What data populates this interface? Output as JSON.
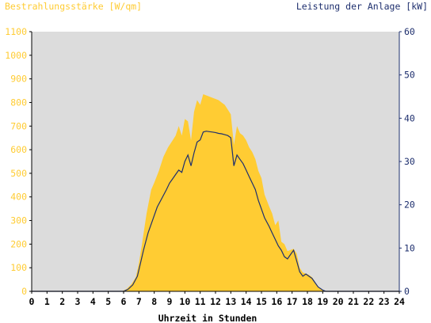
{
  "chart_data": {
    "type": "area",
    "left_axis_title": "Bestrahlungsstärke [W/qm]",
    "right_axis_title": "Leistung der Anlage [kW]",
    "xlabel": "Uhrzeit in Stunden",
    "x_ticks": [
      "0",
      "1",
      "2",
      "3",
      "4",
      "5",
      "6",
      "7",
      "8",
      "9",
      "10",
      "11",
      "12",
      "13",
      "14",
      "15",
      "16",
      "17",
      "18",
      "19",
      "20",
      "21",
      "22",
      "23",
      "24"
    ],
    "left_ticks": [
      "0",
      "100",
      "200",
      "300",
      "400",
      "500",
      "600",
      "700",
      "800",
      "900",
      "1000",
      "1100"
    ],
    "right_ticks": [
      "0",
      "10",
      "20",
      "30",
      "40",
      "50",
      "60"
    ],
    "xlim": [
      0,
      24
    ],
    "ylim_left": [
      0,
      1100
    ],
    "ylim_right": [
      0,
      60
    ],
    "grid": false,
    "colors": {
      "irradiance": "#FFCC33",
      "power": "#1E2F6E",
      "left_axis": "#FFCC33",
      "right_axis": "#1E2F6E",
      "plot_background": "#DCDCDC"
    },
    "series": [
      {
        "key": "irradiance",
        "axis": "left",
        "x": [
          0,
          5.9,
          6.2,
          6.5,
          6.8,
          7.0,
          7.2,
          7.5,
          7.8,
          8.0,
          8.3,
          8.6,
          8.9,
          9.2,
          9.4,
          9.6,
          9.8,
          10.0,
          10.2,
          10.4,
          10.6,
          10.8,
          11.0,
          11.2,
          11.4,
          11.6,
          11.8,
          12.0,
          12.2,
          12.4,
          12.6,
          12.8,
          13.0,
          13.2,
          13.4,
          13.6,
          13.8,
          14.0,
          14.2,
          14.4,
          14.6,
          14.8,
          15.0,
          15.2,
          15.5,
          15.7,
          15.9,
          16.1,
          16.3,
          16.5,
          16.7,
          16.9,
          17.1,
          17.3,
          17.5,
          17.7,
          17.9,
          18.1,
          18.3,
          18.5,
          18.7,
          19.0,
          19.2,
          24
        ],
        "y": [
          0,
          0,
          10,
          30,
          60,
          120,
          200,
          330,
          430,
          460,
          510,
          570,
          610,
          640,
          660,
          700,
          660,
          730,
          720,
          640,
          760,
          810,
          790,
          835,
          830,
          825,
          820,
          815,
          810,
          800,
          790,
          770,
          750,
          620,
          700,
          670,
          660,
          640,
          610,
          590,
          560,
          510,
          480,
          410,
          360,
          330,
          280,
          300,
          210,
          200,
          170,
          175,
          180,
          160,
          100,
          80,
          75,
          70,
          60,
          40,
          20,
          5,
          0,
          0
        ]
      },
      {
        "key": "power",
        "axis": "right",
        "x": [
          0,
          6.0,
          6.3,
          6.6,
          6.9,
          7.1,
          7.3,
          7.6,
          7.9,
          8.2,
          8.5,
          8.8,
          9.0,
          9.2,
          9.4,
          9.6,
          9.8,
          10.0,
          10.2,
          10.4,
          10.6,
          10.8,
          11.0,
          11.2,
          11.4,
          11.6,
          11.8,
          12.0,
          12.2,
          12.4,
          12.6,
          12.8,
          13.0,
          13.2,
          13.4,
          13.6,
          13.8,
          14.0,
          14.2,
          14.4,
          14.6,
          14.8,
          15.0,
          15.2,
          15.5,
          15.7,
          15.9,
          16.1,
          16.3,
          16.5,
          16.7,
          16.9,
          17.1,
          17.3,
          17.5,
          17.7,
          17.9,
          18.1,
          18.3,
          18.5,
          18.7,
          19.0,
          19.2,
          24
        ],
        "y": [
          0,
          0,
          0.5,
          1.5,
          3.5,
          6.5,
          9.5,
          13.5,
          16.5,
          19.5,
          21.5,
          23.5,
          25.0,
          26.0,
          27.0,
          28.0,
          27.5,
          30.0,
          31.5,
          29.0,
          32.0,
          34.5,
          35.0,
          36.8,
          37.0,
          36.9,
          36.8,
          36.7,
          36.5,
          36.4,
          36.2,
          36.0,
          35.5,
          29.0,
          31.5,
          30.5,
          29.5,
          28.0,
          26.5,
          25.0,
          23.5,
          21.0,
          19.0,
          17.0,
          15.0,
          13.5,
          12.0,
          10.5,
          9.5,
          8.0,
          7.5,
          8.5,
          9.5,
          7.0,
          4.5,
          3.5,
          4.0,
          3.5,
          3.0,
          2.0,
          1.0,
          0.3,
          0,
          0
        ]
      }
    ]
  }
}
